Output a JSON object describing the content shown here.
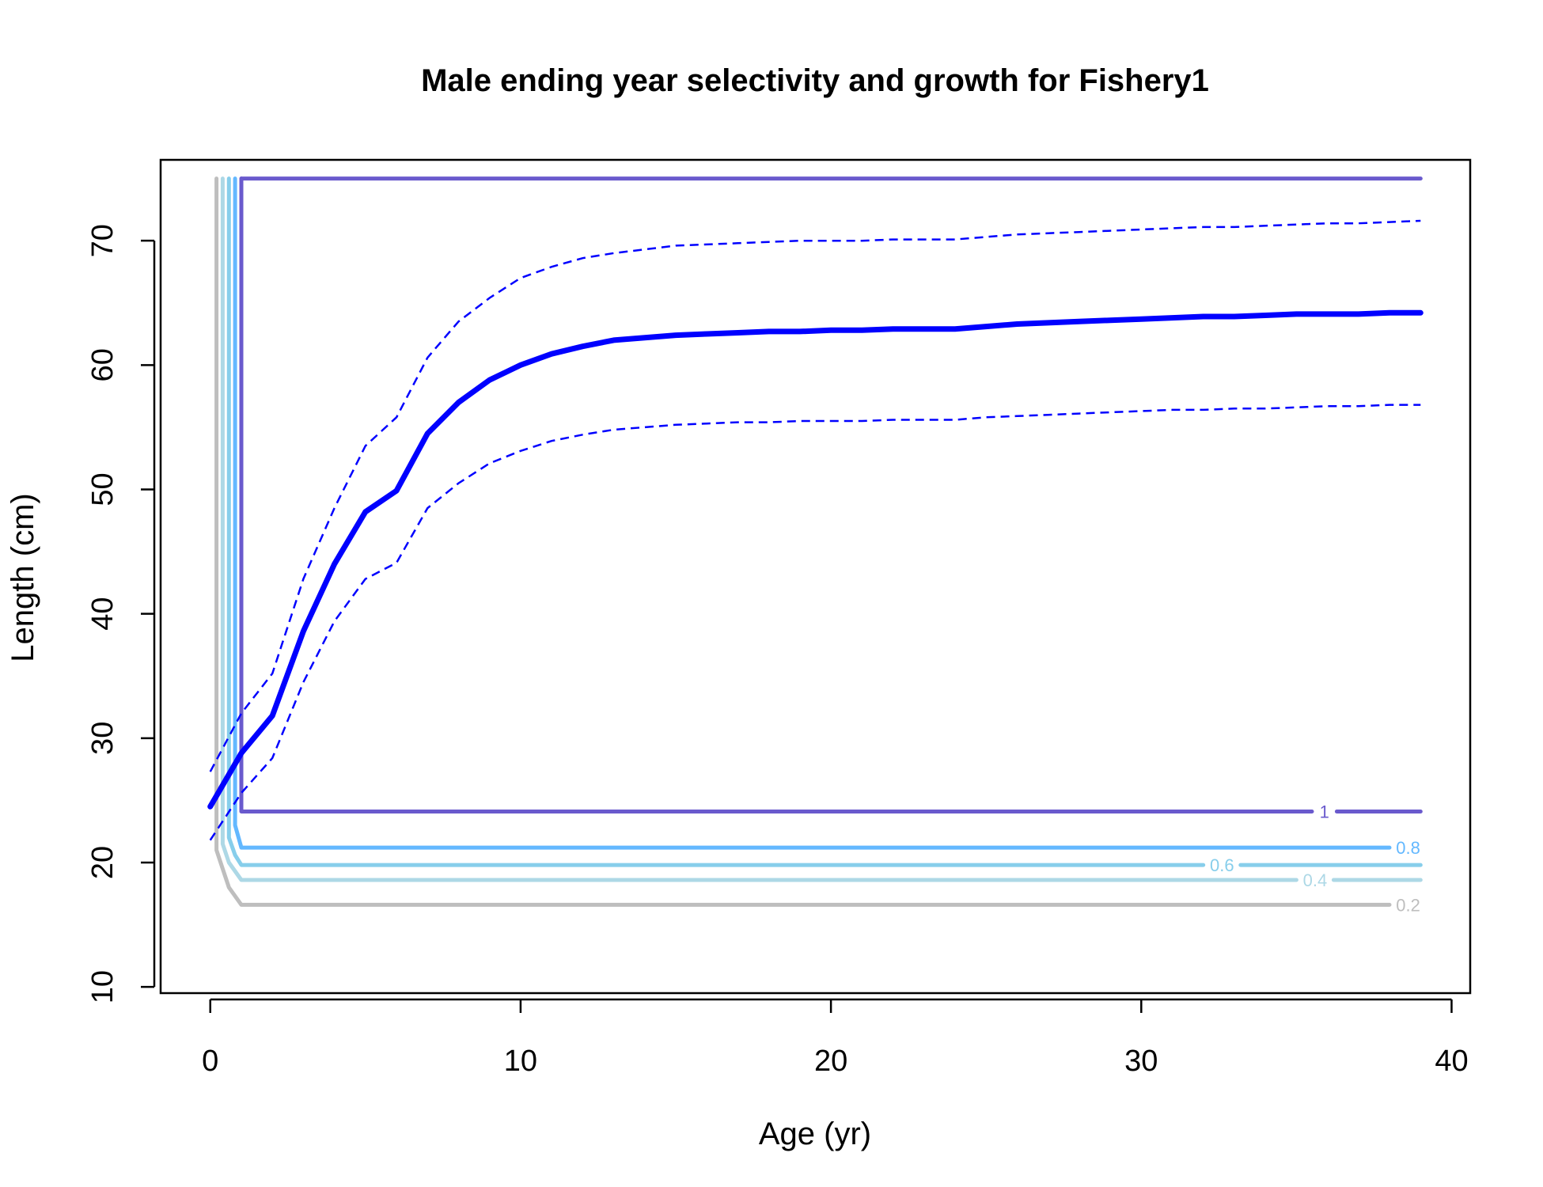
{
  "chart_data": {
    "type": "line",
    "title": "Male ending year selectivity and growth for Fishery1",
    "xlabel": "Age (yr)",
    "ylabel": "Length (cm)",
    "xlim": [
      -1.6,
      40.6
    ],
    "ylim": [
      9.5,
      76.5
    ],
    "x_ticks": [
      0,
      10,
      20,
      30,
      40
    ],
    "y_ticks": [
      10,
      20,
      30,
      40,
      50,
      60,
      70
    ],
    "grid": false,
    "legend": "none",
    "growth": {
      "color": "#0000ff",
      "mean": {
        "x": [
          0,
          1,
          2,
          3,
          4,
          5,
          6,
          7,
          8,
          9,
          10,
          11,
          12,
          13,
          14,
          15,
          16,
          17,
          18,
          19,
          20,
          21,
          22,
          23,
          24,
          25,
          26,
          27,
          28,
          29,
          30,
          31,
          32,
          33,
          34,
          35,
          36,
          37,
          38,
          39
        ],
        "y": [
          24.5,
          28.8,
          31.8,
          38.6,
          44.0,
          48.2,
          49.9,
          54.5,
          57.0,
          58.8,
          60.0,
          60.9,
          61.5,
          62.0,
          62.2,
          62.4,
          62.5,
          62.6,
          62.7,
          62.7,
          62.8,
          62.8,
          62.9,
          62.9,
          62.9,
          63.1,
          63.3,
          63.4,
          63.5,
          63.6,
          63.7,
          63.8,
          63.9,
          63.9,
          64.0,
          64.1,
          64.1,
          64.1,
          64.2,
          64.2
        ]
      },
      "upper": {
        "x": [
          0,
          1,
          2,
          3,
          4,
          5,
          6,
          7,
          8,
          9,
          10,
          11,
          12,
          13,
          14,
          15,
          16,
          17,
          18,
          19,
          20,
          21,
          22,
          23,
          24,
          25,
          26,
          27,
          28,
          29,
          30,
          31,
          32,
          33,
          34,
          35,
          36,
          37,
          38,
          39
        ],
        "y": [
          27.3,
          32.0,
          35.2,
          42.8,
          48.5,
          53.5,
          55.8,
          60.6,
          63.5,
          65.4,
          67.0,
          67.9,
          68.6,
          69.0,
          69.3,
          69.6,
          69.7,
          69.8,
          69.9,
          70.0,
          70.0,
          70.0,
          70.1,
          70.1,
          70.1,
          70.3,
          70.5,
          70.6,
          70.7,
          70.8,
          70.9,
          71.0,
          71.1,
          71.1,
          71.2,
          71.3,
          71.4,
          71.4,
          71.5,
          71.6
        ]
      },
      "lower": {
        "x": [
          0,
          1,
          2,
          3,
          4,
          5,
          6,
          7,
          8,
          9,
          10,
          11,
          12,
          13,
          14,
          15,
          16,
          17,
          18,
          19,
          20,
          21,
          22,
          23,
          24,
          25,
          26,
          27,
          28,
          29,
          30,
          31,
          32,
          33,
          34,
          35,
          36,
          37,
          38,
          39
        ],
        "y": [
          21.8,
          25.6,
          28.4,
          34.5,
          39.4,
          42.8,
          44.1,
          48.5,
          50.5,
          52.1,
          53.1,
          53.9,
          54.4,
          54.8,
          55.0,
          55.2,
          55.3,
          55.4,
          55.4,
          55.5,
          55.5,
          55.5,
          55.6,
          55.6,
          55.6,
          55.8,
          55.9,
          56.0,
          56.1,
          56.2,
          56.3,
          56.4,
          56.4,
          56.5,
          56.5,
          56.6,
          56.7,
          56.7,
          56.8,
          56.8
        ]
      }
    },
    "contours": [
      {
        "label": "0.2",
        "color": "#bebebe",
        "x": [
          0.2,
          0.2,
          0.4,
          0.6,
          1.0,
          38.0
        ],
        "y": [
          75.0,
          21.0,
          19.5,
          18.0,
          16.6,
          16.6
        ],
        "label_x": 38.6,
        "label_y": 16.6
      },
      {
        "label": "0.4",
        "color": "#add8e6",
        "x": [
          0.4,
          0.4,
          0.6,
          1.0,
          35.0
        ],
        "y": [
          75.0,
          21.5,
          20.0,
          18.6,
          18.6
        ],
        "label_x": 35.6,
        "label_y": 18.6
      },
      {
        "label": "",
        "color": "#add8e6",
        "x": [
          36.2,
          39.0
        ],
        "y": [
          18.6,
          18.6
        ]
      },
      {
        "label": "0.6",
        "color": "#87ceeb",
        "x": [
          0.6,
          0.6,
          0.8,
          1.0,
          32.0
        ],
        "y": [
          75.0,
          22.0,
          20.6,
          19.8,
          19.8
        ],
        "label_x": 32.6,
        "label_y": 19.8
      },
      {
        "label": "",
        "color": "#87ceeb",
        "x": [
          33.2,
          39.0
        ],
        "y": [
          19.8,
          19.8
        ]
      },
      {
        "label": "0.8",
        "color": "#63b8ff",
        "x": [
          0.8,
          0.8,
          1.0,
          38.0
        ],
        "y": [
          75.0,
          23.0,
          21.2,
          21.2
        ],
        "label_x": 38.6,
        "label_y": 21.2
      },
      {
        "label": "1",
        "color": "#6a5acd",
        "x": [
          1.0,
          1.0,
          35.5
        ],
        "y": [
          75.0,
          24.1,
          24.1
        ],
        "label_x": 35.9,
        "label_y": 24.1
      },
      {
        "label": "",
        "color": "#6a5acd",
        "x": [
          36.3,
          39.0
        ],
        "y": [
          24.1,
          24.1
        ]
      },
      {
        "label": "",
        "color": "#6a5acd",
        "x": [
          1.0,
          39.0
        ],
        "y": [
          75.0,
          75.0
        ]
      }
    ]
  }
}
